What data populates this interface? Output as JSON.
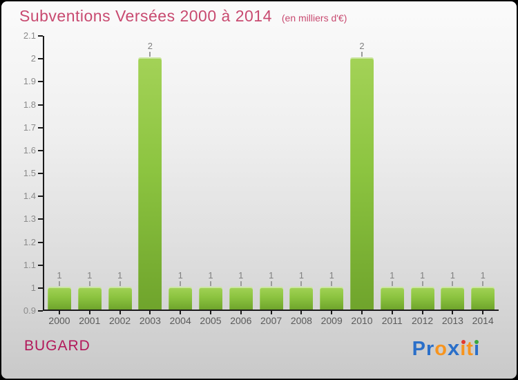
{
  "header": {
    "title": "Subventions Versées 2000 à 2014",
    "subtitle": "(en milliers d'€)"
  },
  "footer": {
    "org": "BUGARD",
    "logo_letters": [
      {
        "ch": "P",
        "color": "#2a6fc9"
      },
      {
        "ch": "r",
        "color": "#2a6fc9"
      },
      {
        "ch": "o",
        "color": "#f7941e"
      },
      {
        "ch": "x",
        "color": "#2a6fc9",
        "bold": true
      },
      {
        "ch": "i",
        "color": "#f7941e",
        "dot_color": "#e2382e"
      },
      {
        "ch": "t",
        "color": "#f7941e"
      },
      {
        "ch": "i",
        "color": "#2a6fc9",
        "dot_color": "#3aa83c"
      }
    ]
  },
  "colors": {
    "title_pink": "#c84a70",
    "org_pink": "#b2185a",
    "bar_green_top": "#a3d257",
    "bar_green_bottom": "#6fa42c",
    "axis": "#1a1a1a",
    "ytick_label": "#8a8a8a",
    "xtick_label": "#5a5a5a",
    "value_label": "#7f7f7f",
    "background_top": "#fbfbfb",
    "background_bottom": "#c9c9c9"
  },
  "chart_data": {
    "type": "bar",
    "title": "Subventions Versées 2000 à 2014",
    "subtitle": "(en milliers d'€)",
    "xlabel": "",
    "ylabel": "",
    "categories": [
      "2000",
      "2001",
      "2002",
      "2003",
      "2004",
      "2005",
      "2006",
      "2007",
      "2008",
      "2009",
      "2010",
      "2011",
      "2012",
      "2013",
      "2014"
    ],
    "values": [
      1,
      1,
      1,
      2,
      1,
      1,
      1,
      1,
      1,
      1,
      2,
      1,
      1,
      1,
      1
    ],
    "ylim": [
      0.9,
      2.1
    ],
    "yticks": [
      "2.1",
      "2",
      "1.9",
      "1.8",
      "1.7",
      "1.6",
      "1.5",
      "1.4",
      "1.3",
      "1.2",
      "1.1",
      "1",
      "0.9"
    ],
    "grid": false,
    "legend": false,
    "bar_value_labels": [
      "1",
      "1",
      "1",
      "2",
      "1",
      "1",
      "1",
      "1",
      "1",
      "1",
      "2",
      "1",
      "1",
      "1",
      "1"
    ]
  }
}
